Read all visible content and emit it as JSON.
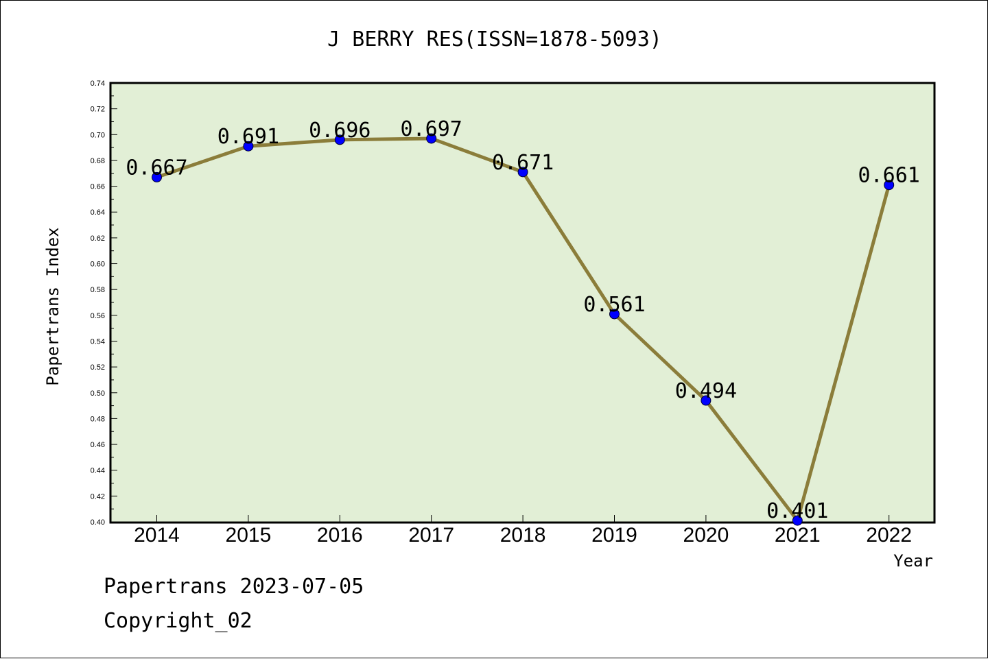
{
  "chart_data": {
    "type": "line",
    "title": "J BERRY RES(ISSN=1878-5093)",
    "xlabel": "Year",
    "ylabel": "Papertrans Index",
    "categories": [
      "2014",
      "2015",
      "2016",
      "2017",
      "2018",
      "2019",
      "2020",
      "2021",
      "2022"
    ],
    "series": [
      {
        "values": [
          0.667,
          0.691,
          0.696,
          0.697,
          0.671,
          0.561,
          0.494,
          0.401,
          0.661
        ],
        "labels": [
          "0.667",
          "0.691",
          "0.696",
          "0.697",
          "0.671",
          "0.561",
          "0.494",
          "0.401",
          "0.661"
        ]
      }
    ],
    "ylim": [
      0.4,
      0.74
    ],
    "yticks": [
      "0.40",
      "0.42",
      "0.44",
      "0.46",
      "0.48",
      "0.50",
      "0.52",
      "0.54",
      "0.56",
      "0.58",
      "0.60",
      "0.62",
      "0.64",
      "0.66",
      "0.68",
      "0.70",
      "0.72",
      "0.74"
    ],
    "grid": false,
    "colors": {
      "plot_background": "#e2efd6",
      "line": "#8b7d3a",
      "marker": "#0000ff"
    }
  },
  "footer": {
    "line1": "Papertrans 2023-07-05",
    "line2": "Copyright_02"
  }
}
